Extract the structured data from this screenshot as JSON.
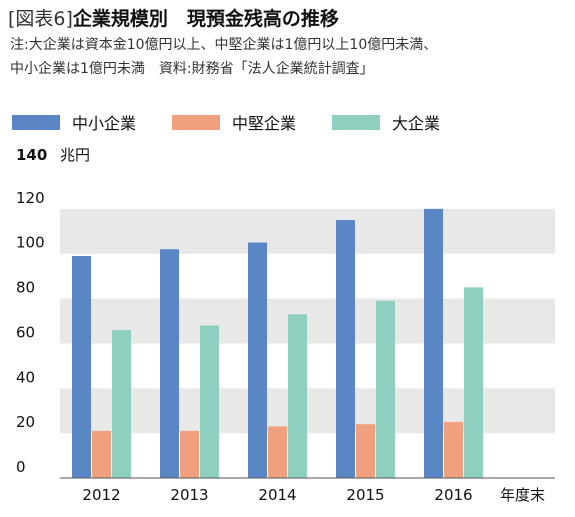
{
  "header": {
    "fig_tag": "[図表6]",
    "title": "企業規模別　現預金残高の推移"
  },
  "notes": {
    "line1": "注:大企業は資本金10億円以上、中堅企業は1億円以上10億円未満、",
    "line2": "中小企業は1億円未満　資料:財務省「法人企業統計調査」"
  },
  "colors": {
    "small": "#5b86c6",
    "mid": "#f0a07e",
    "large": "#8ecfc0",
    "band": "#e8e8e8"
  },
  "chart_data": {
    "type": "bar",
    "categories": [
      "2012",
      "2013",
      "2014",
      "2015",
      "2016"
    ],
    "series": [
      {
        "name": "中小企業",
        "values": [
          99,
          102,
          105,
          115,
          120
        ]
      },
      {
        "name": "中堅企業",
        "values": [
          21,
          21,
          23,
          24,
          25
        ]
      },
      {
        "name": "大企業",
        "values": [
          66,
          68,
          73,
          79,
          85
        ]
      }
    ],
    "y_ticks": [
      "0",
      "20",
      "40",
      "60",
      "80",
      "100",
      "120",
      "140"
    ],
    "y_unit": "兆円",
    "x_unit": "年度末",
    "ylim": [
      0,
      140
    ],
    "grid": false,
    "legend_position": "top-left"
  }
}
